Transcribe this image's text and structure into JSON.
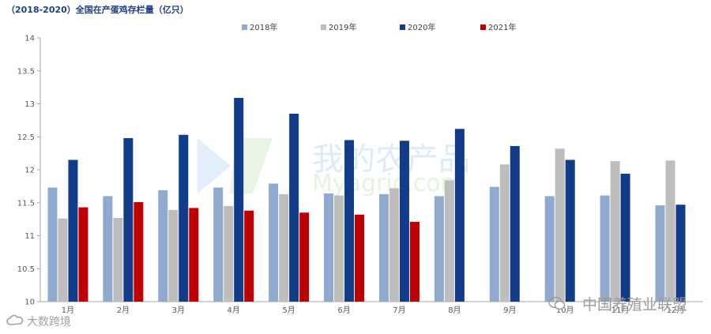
{
  "title": "（2018-2020）全国在产蛋鸡存栏量（亿只）",
  "watermarks": {
    "right": "中国养殖业联盟",
    "left": "大数跨境"
  },
  "chart_data": {
    "type": "bar",
    "title": "（2018-2020）全国在产蛋鸡存栏量（亿只）",
    "xlabel": "",
    "ylabel": "",
    "ylim": [
      10,
      14
    ],
    "yticks": [
      10,
      10.5,
      11,
      11.5,
      12,
      12.5,
      13,
      13.5,
      14
    ],
    "grid": false,
    "legend_position": "top",
    "categories": [
      "1月",
      "2月",
      "3月",
      "4月",
      "5月",
      "6月",
      "7月",
      "8月",
      "9月",
      "10月",
      "11月",
      "12月"
    ],
    "series": [
      {
        "name": "2018年",
        "color": "#8eaacf",
        "values": [
          11.73,
          11.6,
          11.69,
          11.73,
          11.79,
          11.64,
          11.63,
          11.6,
          11.74,
          11.6,
          11.61,
          11.46
        ]
      },
      {
        "name": "2019年",
        "color": "#bdbdbd",
        "values": [
          11.26,
          11.27,
          11.39,
          11.45,
          11.63,
          11.61,
          11.72,
          11.84,
          12.08,
          12.32,
          12.13,
          12.14
        ]
      },
      {
        "name": "2020年",
        "color": "#103c8a",
        "values": [
          12.15,
          12.48,
          12.53,
          13.09,
          12.85,
          12.45,
          12.44,
          12.62,
          12.36,
          12.15,
          11.94,
          11.47
        ]
      },
      {
        "name": "2021年",
        "color": "#c00000",
        "values": [
          11.43,
          11.51,
          11.42,
          11.38,
          11.35,
          11.32,
          11.21,
          null,
          null,
          null,
          null,
          null
        ]
      }
    ]
  }
}
